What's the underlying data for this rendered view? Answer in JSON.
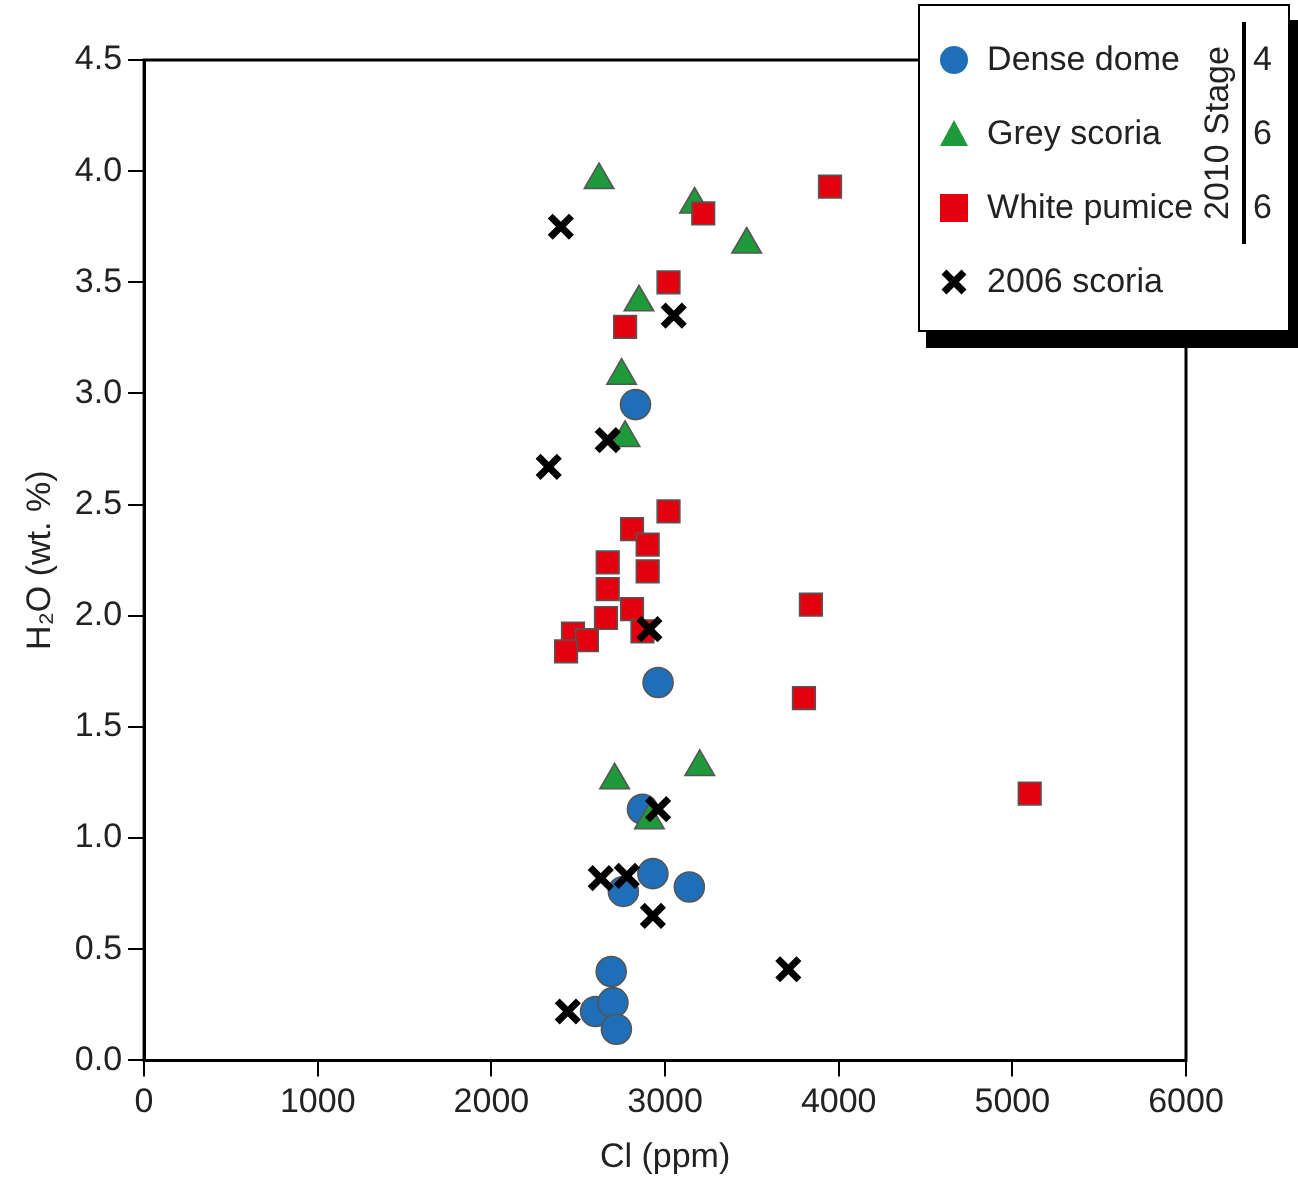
{
  "chart_data": {
    "type": "scatter",
    "xlabel": "Cl (ppm)",
    "ylabel": "H₂O (wt. %)",
    "xlim": [
      0,
      6000
    ],
    "xticks": [
      0,
      1000,
      2000,
      3000,
      4000,
      5000,
      6000
    ],
    "ylim": [
      0,
      4.5
    ],
    "yticks": [
      {
        "value": 0,
        "label": "0.0"
      },
      {
        "value": 0.5,
        "label": "0.5"
      },
      {
        "value": 1,
        "label": "1.0"
      },
      {
        "value": 1.5,
        "label": "1.5"
      },
      {
        "value": 2,
        "label": "2.0"
      },
      {
        "value": 2.5,
        "label": "2.5"
      },
      {
        "value": 3,
        "label": "3.0"
      },
      {
        "value": 3.5,
        "label": "3.5"
      },
      {
        "value": 4,
        "label": "4.0"
      },
      {
        "value": 4.5,
        "label": "4.5"
      }
    ],
    "grid": false,
    "legend": "top right",
    "legend_title": "2010 Stage",
    "annotations": [
      "4",
      "6",
      "6"
    ],
    "series": [
      {
        "name": "Dense dome",
        "color": "#1f6fb8",
        "marker": "circle",
        "x": [
          2830,
          2960,
          2870,
          2930,
          2760,
          3140,
          2690,
          2600,
          2700,
          2720
        ],
        "values": [
          2.95,
          1.7,
          1.13,
          0.84,
          0.76,
          0.78,
          0.4,
          0.22,
          0.26,
          0.14
        ]
      },
      {
        "name": "Grey scoria",
        "color": "#1e9a3a",
        "marker": "triangle",
        "x": [
          2620,
          3170,
          3470,
          2850,
          2750,
          2770,
          2710,
          3200,
          2910
        ],
        "values": [
          3.96,
          3.85,
          3.67,
          3.41,
          3.08,
          2.8,
          1.26,
          1.32,
          1.08
        ]
      },
      {
        "name": "White pumice",
        "color": "#e3000f",
        "marker": "square",
        "x": [
          3220,
          3950,
          3020,
          2770,
          3020,
          2810,
          2900,
          2900,
          2670,
          2670,
          2660,
          2810,
          2870,
          2470,
          2550,
          2430,
          3840,
          3800,
          5100
        ],
        "values": [
          3.81,
          3.93,
          3.5,
          3.3,
          2.47,
          2.39,
          2.32,
          2.2,
          2.24,
          2.12,
          1.99,
          2.03,
          1.93,
          1.92,
          1.89,
          1.84,
          2.05,
          1.63,
          1.2
        ]
      },
      {
        "name": "2006 scoria",
        "color": "#000000",
        "marker": "cross",
        "x": [
          2400,
          3050,
          2670,
          2330,
          2910,
          2960,
          2630,
          2780,
          2930,
          3710,
          2440
        ],
        "values": [
          3.75,
          3.35,
          2.79,
          2.67,
          1.94,
          1.13,
          0.82,
          0.83,
          0.65,
          0.41,
          0.22
        ]
      }
    ]
  }
}
